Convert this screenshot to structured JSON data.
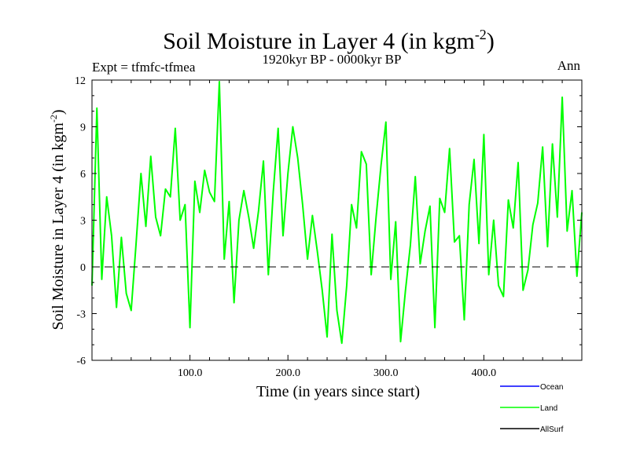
{
  "chart_data": {
    "type": "line",
    "title": "Soil Moisture in Layer 4 (in kgm",
    "title_sup": "-2",
    "title_close": ")",
    "subtitle": "1920kyr BP - 0000kyr BP",
    "experiment": "Expt = tfmfc-tfmea",
    "season": "Ann",
    "xlabel": "Time (in years since start)",
    "ylabel": "Soil Moisture in Layer 4 (in kgm",
    "ylabel_sup": "-2",
    "ylabel_close": ")",
    "xlim": [
      0,
      500
    ],
    "ylim": [
      -6,
      12
    ],
    "xticks": [
      100,
      200,
      300,
      400
    ],
    "xtick_labels": [
      "100.0",
      "200.0",
      "300.0",
      "400.0"
    ],
    "yticks": [
      -6,
      -3,
      0,
      3,
      6,
      9,
      12
    ],
    "ytick_labels": [
      "-6",
      "-3",
      "0",
      "3",
      "6",
      "9",
      "12"
    ],
    "zero_line": 0,
    "legend": [
      {
        "name": "Ocean",
        "color": "#0000ff"
      },
      {
        "name": "Land",
        "color": "#00ff00"
      },
      {
        "name": "AllSurf",
        "color": "#000000"
      }
    ],
    "series": [
      {
        "name": "Land",
        "color": "#00ff00",
        "x": [
          0,
          5,
          10,
          15,
          20,
          25,
          30,
          35,
          40,
          45,
          50,
          55,
          60,
          65,
          70,
          75,
          80,
          85,
          90,
          95,
          100,
          105,
          110,
          115,
          120,
          125,
          130,
          135,
          140,
          145,
          150,
          155,
          160,
          165,
          170,
          175,
          180,
          185,
          190,
          195,
          200,
          205,
          210,
          215,
          220,
          225,
          230,
          235,
          240,
          245,
          250,
          255,
          260,
          265,
          270,
          275,
          280,
          285,
          290,
          295,
          300,
          305,
          310,
          315,
          320,
          325,
          330,
          335,
          340,
          345,
          350,
          355,
          360,
          365,
          370,
          375,
          380,
          385,
          390,
          395,
          400,
          405,
          410,
          415,
          420,
          425,
          430,
          435,
          440,
          445,
          450,
          455,
          460,
          465,
          470,
          475,
          480,
          485,
          490,
          495,
          500
        ],
        "values": [
          -1.2,
          10.2,
          -0.8,
          4.5,
          2.0,
          -2.6,
          1.9,
          -1.7,
          -2.8,
          1.5,
          6.0,
          2.6,
          7.1,
          3.2,
          2.0,
          5.0,
          4.5,
          8.9,
          3.0,
          4.0,
          -3.9,
          5.5,
          3.5,
          6.2,
          4.8,
          4.2,
          11.9,
          0.5,
          4.2,
          -2.3,
          3.0,
          4.9,
          3.2,
          1.2,
          3.6,
          6.8,
          -0.5,
          4.8,
          8.9,
          2.0,
          6.0,
          9.0,
          7.0,
          4.0,
          0.5,
          3.3,
          1.0,
          -1.5,
          -4.5,
          2.1,
          -2.8,
          -4.9,
          -1.2,
          4.0,
          2.5,
          7.4,
          6.6,
          -0.5,
          3.2,
          6.5,
          9.3,
          -0.8,
          2.9,
          -4.8,
          -1.5,
          1.4,
          5.8,
          0.2,
          2.3,
          3.9,
          -3.9,
          4.4,
          3.5,
          7.6,
          1.6,
          2.0,
          -3.4,
          4.0,
          6.9,
          1.5,
          8.5,
          -0.5,
          3.0,
          -1.2,
          -1.9,
          4.3,
          2.5,
          6.7,
          -1.5,
          -0.2,
          2.7,
          4.1,
          7.7,
          1.3,
          7.9,
          3.2,
          10.9,
          2.3,
          4.9,
          -0.6,
          3.5
        ]
      }
    ]
  }
}
